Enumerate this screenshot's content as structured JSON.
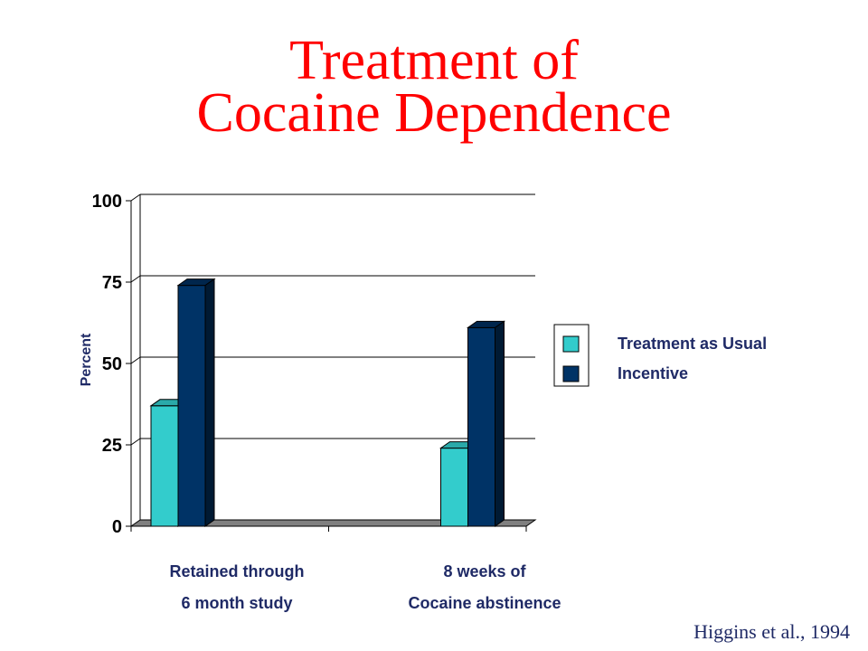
{
  "slide": {
    "title_line1": "Treatment of",
    "title_line2": "Cocaine Dependence",
    "citation": "Higgins et al., 1994"
  },
  "colors": {
    "title": "#ff0000",
    "series_tau": "#33cccc",
    "series_incentive": "#003366",
    "text": "#1f2a66"
  },
  "chart_data": {
    "type": "bar",
    "title": "",
    "ylabel": "Percent",
    "xlabel": "",
    "ylim": [
      0,
      100
    ],
    "yticks": [
      "0",
      "25",
      "50",
      "75",
      "100"
    ],
    "grid": true,
    "legend_position": "right",
    "categories": [
      [
        "Retained through",
        "6 month study"
      ],
      [
        "8 weeks of",
        "Cocaine abstinence"
      ]
    ],
    "series": [
      {
        "name": "Treatment as Usual",
        "values": [
          37,
          24
        ]
      },
      {
        "name": "Incentive",
        "values": [
          74,
          61
        ]
      }
    ]
  }
}
